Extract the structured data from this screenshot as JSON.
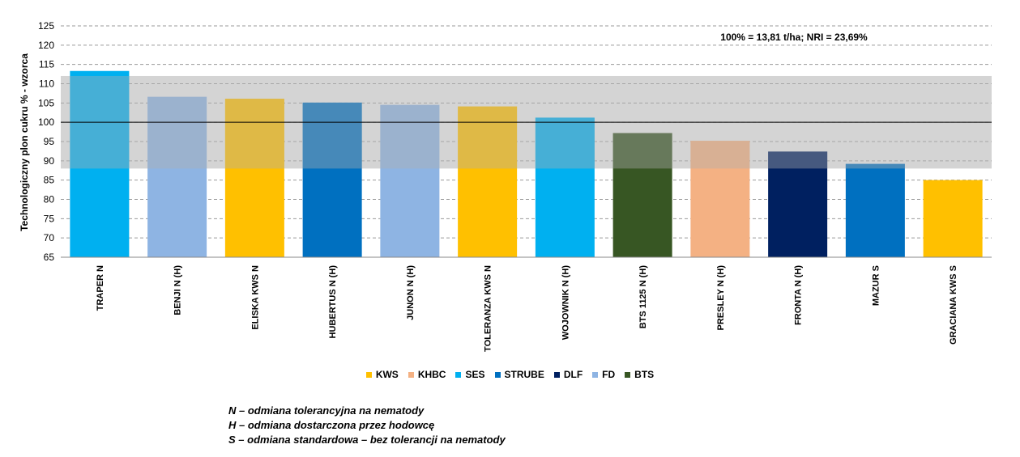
{
  "chart_data": {
    "type": "bar",
    "ylabel": "Technologiczny plon cukru % - wzorca",
    "ylim": [
      65,
      125
    ],
    "yticks": [
      65,
      70,
      75,
      80,
      85,
      90,
      95,
      100,
      105,
      110,
      115,
      120,
      125
    ],
    "grid": "horizontal-dashed",
    "annotation": "100% = 13,81 t/ha; NRI = 23,69%",
    "reference_line": 100,
    "shaded_band": [
      88,
      112
    ],
    "categories": [
      "TRAPER N",
      "BENJI N (H)",
      "ELISKA KWS N",
      "HUBERTUS N (H)",
      "JUNON N (H)",
      "TOLERANZA KWS N",
      "WOJOWNIK N (H)",
      "BTS 1125 N (H)",
      "PRESLEY N (H)",
      "FRONTA N (H)",
      "MAZUR S",
      "GRACIANA KWS S"
    ],
    "values": [
      113.3,
      106.6,
      106.1,
      105.1,
      104.5,
      104.1,
      101.2,
      97.2,
      95.2,
      92.4,
      89.2,
      85.0
    ],
    "breeders": [
      "SES",
      "FD",
      "KWS",
      "STRUBE",
      "FD",
      "KWS",
      "SES",
      "BTS",
      "KHBC",
      "DLF",
      "STRUBE",
      "KWS"
    ],
    "legend_position": "bottom-center",
    "legend": [
      {
        "name": "KWS",
        "color": "#FFC000"
      },
      {
        "name": "KHBC",
        "color": "#F4B183"
      },
      {
        "name": "SES",
        "color": "#00B0F0"
      },
      {
        "name": "STRUBE",
        "color": "#0070C0"
      },
      {
        "name": "DLF",
        "color": "#002060"
      },
      {
        "name": "FD",
        "color": "#8EB4E3"
      },
      {
        "name": "BTS",
        "color": "#375623"
      }
    ]
  },
  "notes": [
    "N – odmiana tolerancyjna na nematody",
    "H – odmiana dostarczona przez hodowcę",
    "S – odmiana standardowa – bez tolerancji na nematody"
  ]
}
